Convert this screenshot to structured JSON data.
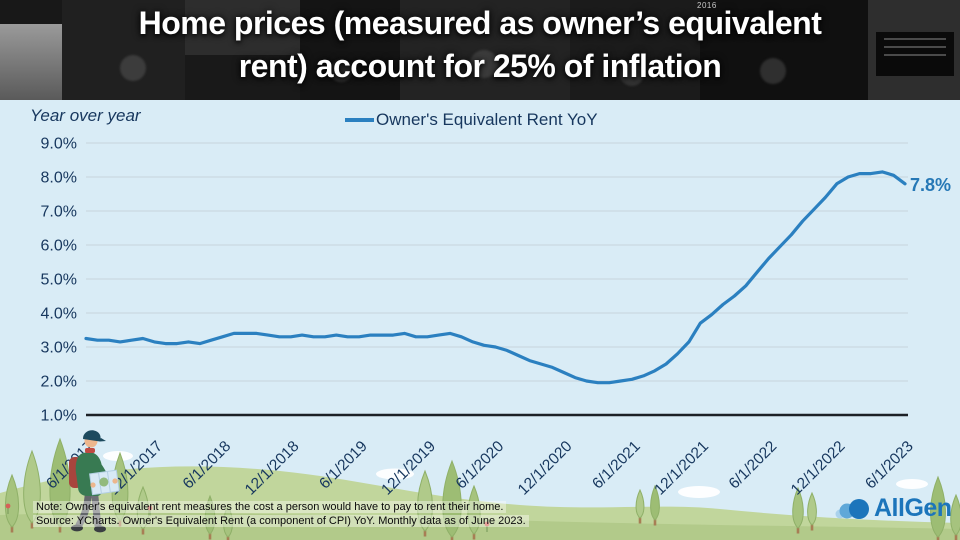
{
  "header": {
    "title_line1": "Home prices (measured as owner’s equivalent",
    "title_line2": "rent) account for 25% of inflation",
    "photo_caption": "2016"
  },
  "chart_data": {
    "type": "line",
    "title": "Owner's Equivalent Rent YoY",
    "y_axis_note": "Year over year",
    "legend": [
      "Owner's Equivalent Rent YoY"
    ],
    "frequency": "monthly",
    "x_start": "6/1/2017",
    "x_end": "6/1/2023",
    "x_tick_labels": [
      "6/1/2017",
      "12/1/2017",
      "6/1/2018",
      "12/1/2018",
      "6/1/2019",
      "12/1/2019",
      "6/1/2020",
      "12/1/2020",
      "6/1/2021",
      "12/1/2021",
      "6/1/2022",
      "12/1/2022",
      "6/1/2023"
    ],
    "y_tick_labels": [
      "9.0%",
      "8.0%",
      "7.0%",
      "6.0%",
      "5.0%",
      "4.0%",
      "3.0%",
      "2.0%",
      "1.0%"
    ],
    "ylim": [
      1.0,
      9.0
    ],
    "grid": true,
    "legend_position": "top-center",
    "end_annotation": "7.8%",
    "line_color": "#2b80c0",
    "axis_text_color": "#17375e",
    "series": [
      {
        "name": "Owner's Equivalent Rent YoY",
        "values": [
          3.25,
          3.2,
          3.2,
          3.15,
          3.2,
          3.25,
          3.15,
          3.1,
          3.1,
          3.15,
          3.1,
          3.2,
          3.3,
          3.4,
          3.4,
          3.4,
          3.35,
          3.3,
          3.3,
          3.35,
          3.3,
          3.3,
          3.35,
          3.3,
          3.3,
          3.35,
          3.35,
          3.35,
          3.4,
          3.3,
          3.3,
          3.35,
          3.4,
          3.3,
          3.15,
          3.05,
          3.0,
          2.9,
          2.75,
          2.6,
          2.5,
          2.4,
          2.25,
          2.1,
          2.0,
          1.95,
          1.95,
          2.0,
          2.05,
          2.15,
          2.3,
          2.5,
          2.8,
          3.15,
          3.7,
          3.95,
          4.25,
          4.5,
          4.8,
          5.2,
          5.6,
          5.95,
          6.3,
          6.7,
          7.05,
          7.4,
          7.8,
          8.0,
          8.1,
          8.1,
          8.15,
          8.05,
          7.8
        ]
      }
    ]
  },
  "footer": {
    "note_line1": "Note: Owner's equivalent rent measures the cost a person would have to pay to rent their home.",
    "note_line2": "Source: YCharts. Owner's Equivalent Rent (a component of CPI) YoY. Monthly data as of June 2023.",
    "logo_text": "AllGen"
  },
  "colors": {
    "slide_background": "#d9ecf6",
    "line": "#2b80c0",
    "axis_text": "#17375e",
    "gridline": "#c7d5dc",
    "annotation": "#2678b6",
    "logo_blue": "#1c75bb",
    "hill_green": "#c1d69c"
  }
}
